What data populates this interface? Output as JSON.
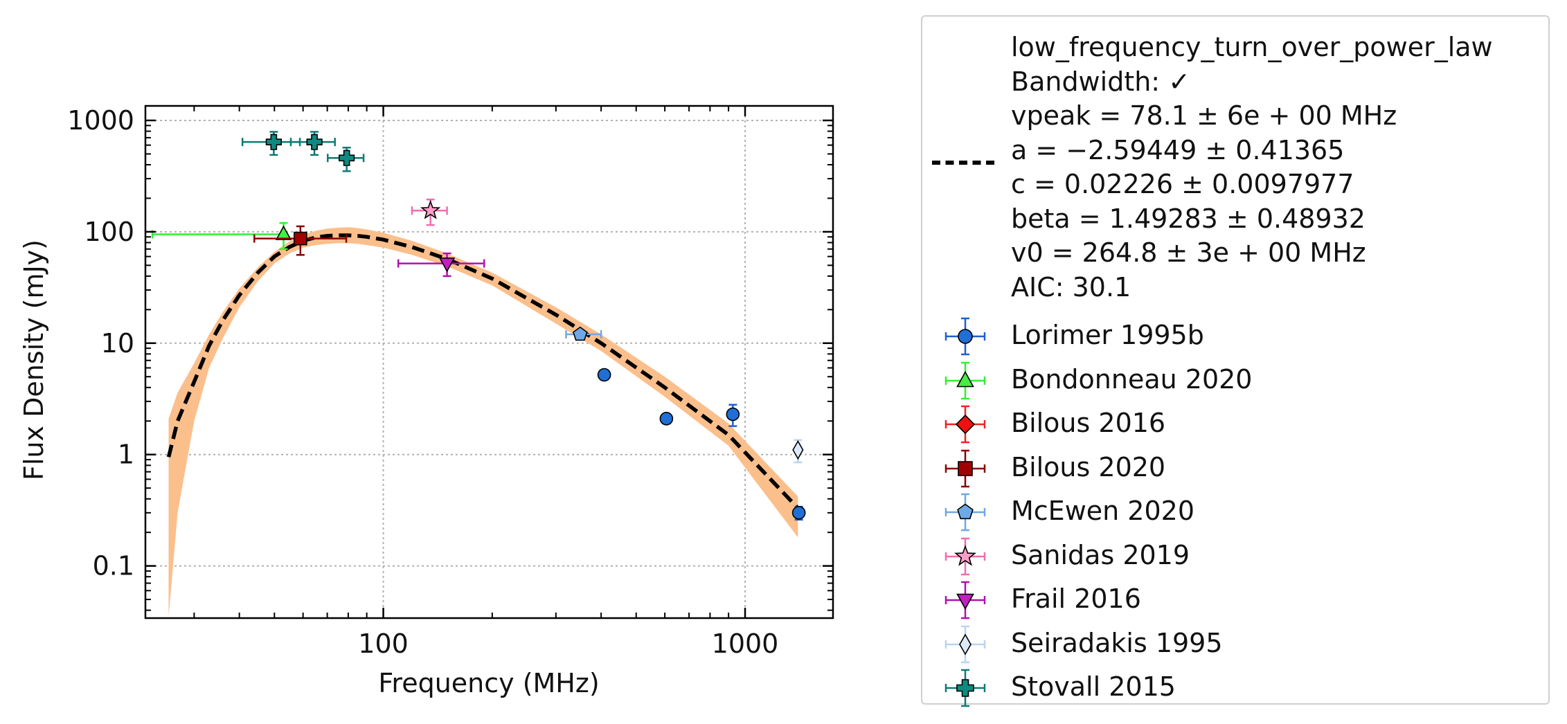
{
  "chart_data": {
    "type": "scatter",
    "xscale": "log",
    "yscale": "log",
    "xlabel": "Frequency (MHz)",
    "ylabel": "Flux Density (mJy)",
    "xlim": [
      22,
      1750
    ],
    "ylim": [
      0.034,
      1350
    ],
    "x_ticks": [
      {
        "value": 100,
        "label": "100"
      },
      {
        "value": 1000,
        "label": "1000"
      }
    ],
    "y_ticks": [
      {
        "value": 0.1,
        "label": "0.1"
      },
      {
        "value": 1,
        "label": "1"
      },
      {
        "value": 10,
        "label": "10"
      },
      {
        "value": 100,
        "label": "100"
      },
      {
        "value": 1000,
        "label": "1000"
      }
    ],
    "grid": true,
    "legend_position": "outside-right",
    "fit": {
      "model": "low_frequency_turn_over_power_law",
      "color": "#000000",
      "band_color": "#fbbf8c",
      "lines": [
        "low_frequency_turn_over_power_law",
        "Bandwidth: ✓",
        "vpeak = 78.1 ± 6e + 00 MHz",
        "a = −2.59449 ± 0.41365",
        "c = 0.02226 ± 0.0097977",
        "beta = 1.49283 ± 0.48932",
        "v0 = 264.8 ± 3e + 00 MHz",
        "AIC: 30.1"
      ],
      "curve": {
        "x": [
          25.5,
          27,
          30,
          33,
          36,
          40,
          45,
          50,
          55,
          60,
          65,
          70,
          75,
          80,
          85,
          90,
          100,
          120,
          150,
          200,
          300,
          400,
          600,
          900,
          1400
        ],
        "y": [
          0.95,
          2.0,
          4.5,
          9.5,
          16,
          27,
          43,
          60,
          73,
          83,
          89,
          92,
          93,
          93,
          92,
          90,
          85,
          73,
          57,
          38,
          18,
          10,
          4.0,
          1.5,
          0.33
        ]
      },
      "band_upper": [
        2.1,
        3.6,
        6.6,
        12,
        19,
        31,
        48,
        66,
        82,
        94,
        102,
        107,
        109,
        110,
        108,
        105,
        98,
        83,
        64,
        43,
        21,
        12,
        5.0,
        1.9,
        0.42
      ],
      "band_lower": [
        0.035,
        0.3,
        2.0,
        6.0,
        11,
        21,
        36,
        52,
        64,
        72,
        76,
        78,
        79,
        79,
        78,
        76,
        72,
        62,
        49,
        33,
        15,
        8.5,
        3.3,
        1.2,
        0.18
      ]
    },
    "series": [
      {
        "name": "Lorimer 1995b",
        "marker": "circle",
        "color": "#1f6fd6",
        "ecolor": "#1f5fcf",
        "points": [
          {
            "x": 408,
            "y": 5.2,
            "xerr": [
              0,
              0
            ],
            "yerr": [
              0.5,
              0.5
            ]
          },
          {
            "x": 606,
            "y": 2.1,
            "xerr": [
              0,
              0
            ],
            "yerr": [
              0.2,
              0.2
            ]
          },
          {
            "x": 925,
            "y": 2.3,
            "xerr": [
              0,
              0
            ],
            "yerr": [
              0.5,
              0.5
            ]
          },
          {
            "x": 1408,
            "y": 0.3,
            "xerr": [
              0,
              0
            ],
            "yerr": [
              0.04,
              0.04
            ]
          }
        ]
      },
      {
        "name": "Bondonneau 2020",
        "marker": "triangle-up",
        "color": "#44ee44",
        "ecolor": "#33ee33",
        "points": [
          {
            "x": 53,
            "y": 95,
            "xerr": [
              30,
              0
            ],
            "yerr": [
              25,
              25
            ]
          }
        ]
      },
      {
        "name": "Bilous 2016",
        "marker": "diamond",
        "color": "#ee1111",
        "ecolor": "#ee2222",
        "points": []
      },
      {
        "name": "Bilous 2020",
        "marker": "square",
        "color": "#a00000",
        "ecolor": "#8b0000",
        "points": [
          {
            "x": 59,
            "y": 87,
            "xerr": [
              15,
              20
            ],
            "yerr": [
              25,
              25
            ]
          }
        ]
      },
      {
        "name": "McEwen 2020",
        "marker": "pentagon",
        "color": "#6fa8e6",
        "ecolor": "#6fa8e6",
        "points": [
          {
            "x": 350,
            "y": 12,
            "xerr": [
              30,
              50
            ],
            "yerr": [
              0.8,
              0.8
            ]
          }
        ]
      },
      {
        "name": "Sanidas 2019",
        "marker": "star",
        "color": "#ff9ec8",
        "ecolor": "#f06cb0",
        "points": [
          {
            "x": 135,
            "y": 155,
            "xerr": [
              15,
              15
            ],
            "yerr": [
              40,
              40
            ]
          }
        ]
      },
      {
        "name": "Frail 2016",
        "marker": "triangle-down",
        "color": "#c020c0",
        "ecolor": "#b010b0",
        "points": [
          {
            "x": 150,
            "y": 52,
            "xerr": [
              40,
              40
            ],
            "yerr": [
              12,
              12
            ]
          }
        ]
      },
      {
        "name": "Seiradakis 1995",
        "marker": "thin-diamond",
        "color": "#dce9f8",
        "ecolor": "#b8d4f2",
        "points": [
          {
            "x": 1400,
            "y": 1.1,
            "xerr": [
              0,
              0
            ],
            "yerr": [
              0.25,
              0.25
            ]
          }
        ]
      },
      {
        "name": "Stovall 2015",
        "marker": "plus-filled",
        "color": "#0e8a80",
        "ecolor": "#0e7a75",
        "points": [
          {
            "x": 49.8,
            "y": 640,
            "xerr": [
              9,
              9
            ],
            "yerr": [
              150,
              150
            ]
          },
          {
            "x": 64.5,
            "y": 640,
            "xerr": [
              9,
              9
            ],
            "yerr": [
              150,
              150
            ]
          },
          {
            "x": 79.2,
            "y": 460,
            "xerr": [
              9,
              9
            ],
            "yerr": [
              110,
              110
            ]
          }
        ]
      }
    ]
  }
}
